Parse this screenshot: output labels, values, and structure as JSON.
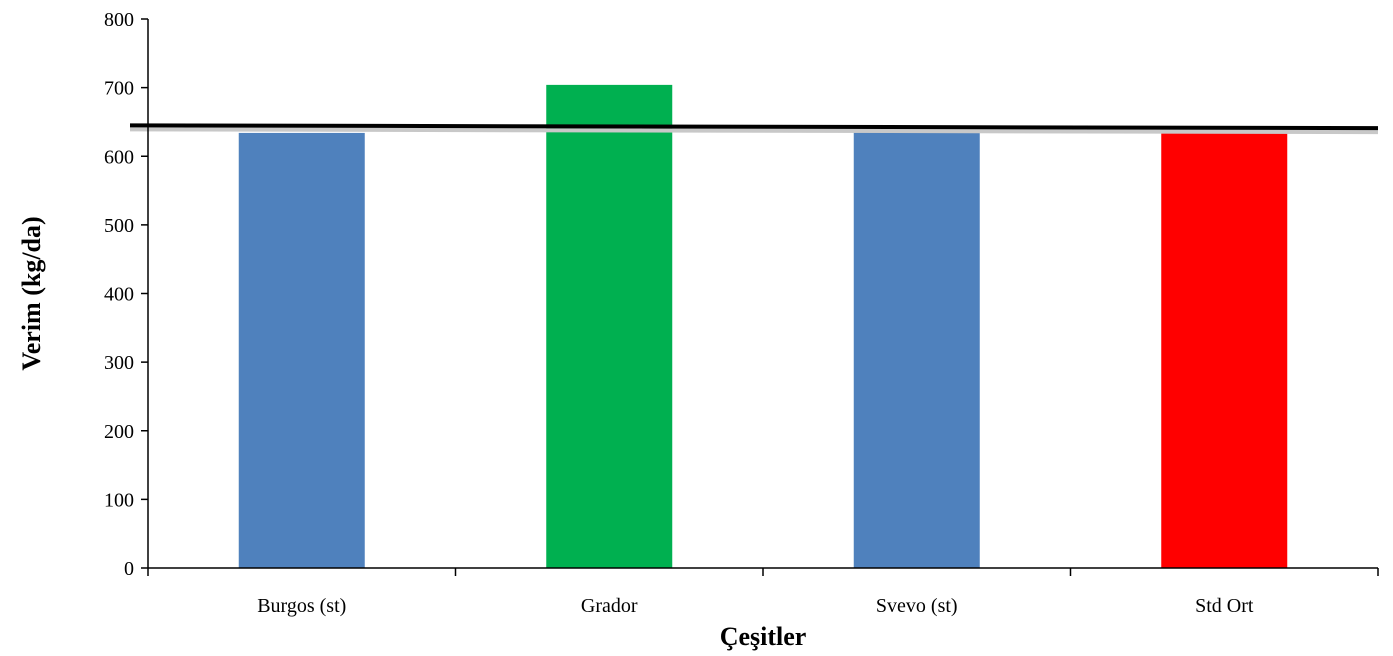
{
  "chart_data": {
    "type": "bar",
    "categories": [
      "Burgos (st)",
      "Grador",
      "Svevo (st)",
      "Std Ort"
    ],
    "values": [
      634,
      704,
      636,
      636
    ],
    "bar_colors": [
      "#4f81bd",
      "#00b050",
      "#4f81bd",
      "#ff0000"
    ],
    "reference_line": {
      "start": 645,
      "end": 641,
      "color": "#000000"
    },
    "xlabel": "Çeşitler",
    "ylabel": "Verim (kg/da)",
    "ylim": [
      0,
      800
    ],
    "yticks": [
      "0",
      "100",
      "200",
      "300",
      "400",
      "500",
      "600",
      "700",
      "800"
    ],
    "grid": false
  }
}
